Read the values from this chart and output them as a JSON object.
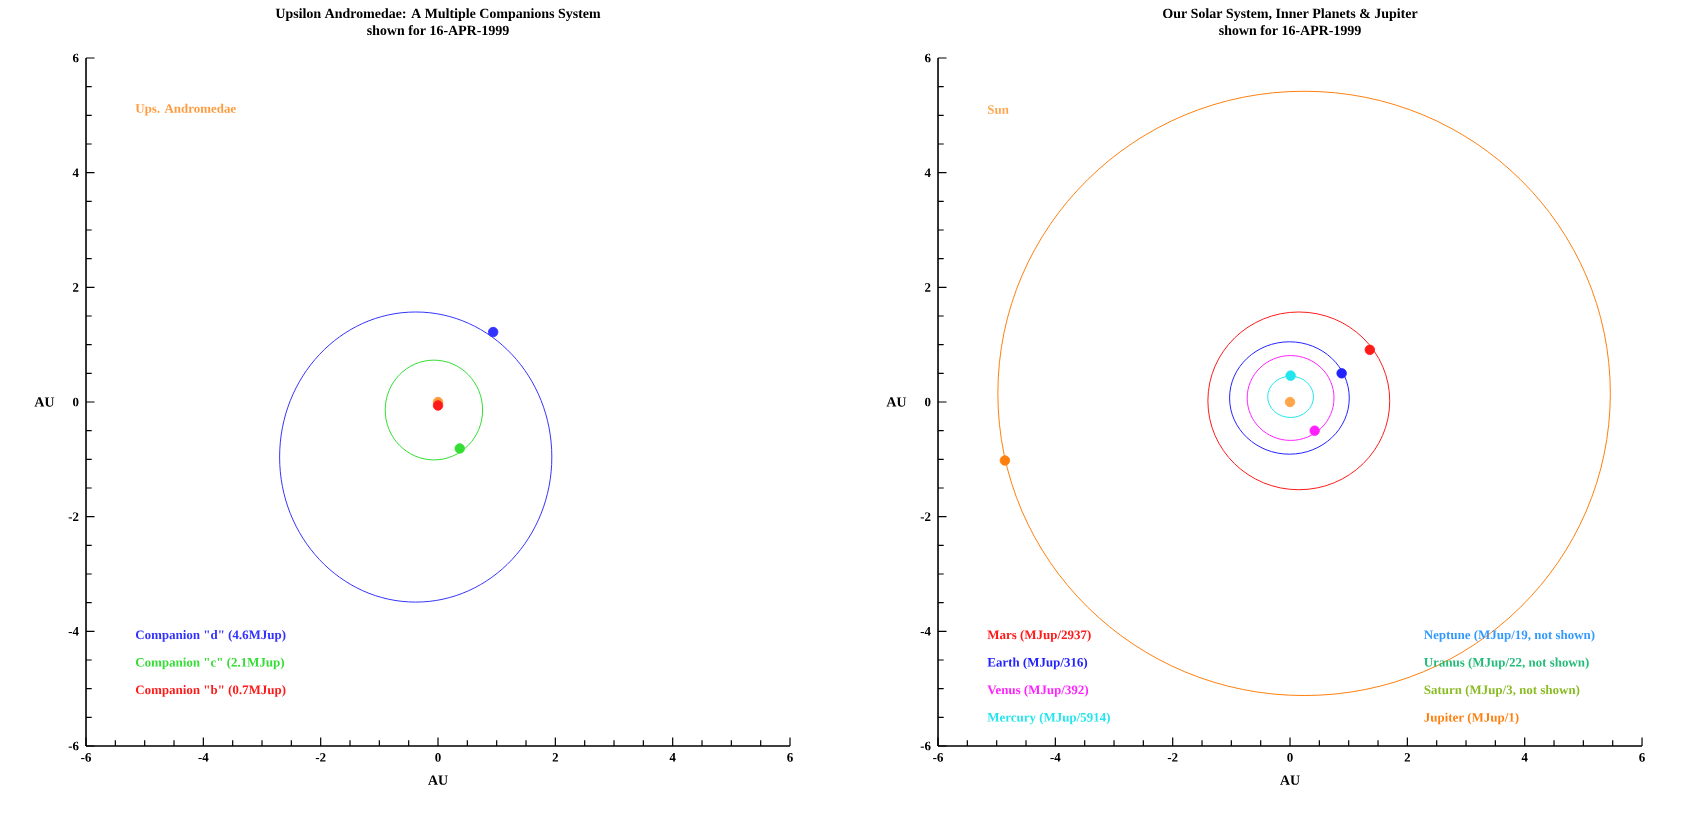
{
  "chart_data": [
    {
      "type": "scatter",
      "title": "Upsilon Andromedae: A Multiple Companions System",
      "subtitle": "shown for 16-APR-1999",
      "xlabel": "AU",
      "ylabel": "AU",
      "xlim": [
        -6,
        6
      ],
      "ylim": [
        -6,
        6
      ],
      "xticks": [
        -6,
        -4,
        -2,
        0,
        2,
        4,
        6
      ],
      "yticks": [
        -6,
        -4,
        -2,
        0,
        2,
        4,
        6
      ],
      "series": [
        {
          "name": "Ups. Andromedae",
          "color": "#ff9a3c",
          "x": [
            0
          ],
          "values": [
            0
          ]
        },
        {
          "name": "Companion \"d\" (4.6MJup)",
          "color": "#3333ff",
          "x": [
            0.94
          ],
          "values": [
            1.22
          ]
        },
        {
          "name": "Companion \"c\" (2.1MJup)",
          "color": "#33dd33",
          "x": [
            0.37
          ],
          "values": [
            -0.81
          ]
        },
        {
          "name": "Companion \"b\" (0.7MJup)",
          "color": "#ff1a1a",
          "x": [
            0
          ],
          "values": [
            -0.06
          ]
        }
      ]
    },
    {
      "type": "scatter",
      "title": "Our Solar System, Inner Planets & Jupiter",
      "subtitle": "shown for 16-APR-1999",
      "xlabel": "AU",
      "ylabel": "AU",
      "xlim": [
        -6,
        6
      ],
      "ylim": [
        -6,
        6
      ],
      "xticks": [
        -6,
        -4,
        -2,
        0,
        2,
        4,
        6
      ],
      "yticks": [
        -6,
        -4,
        -2,
        0,
        2,
        4,
        6
      ],
      "series": [
        {
          "name": "Sun",
          "color": "#ffa64d",
          "x": [
            0
          ],
          "values": [
            0
          ]
        },
        {
          "name": "Mars (MJup/2937)",
          "color": "#ff1a1a",
          "x": [
            1.36
          ],
          "values": [
            0.91
          ]
        },
        {
          "name": "Earth (MJup/316)",
          "color": "#2222ff",
          "x": [
            0.88
          ],
          "values": [
            0.5
          ]
        },
        {
          "name": "Venus (MJup/392)",
          "color": "#ff22ff",
          "x": [
            0.42
          ],
          "values": [
            -0.5
          ]
        },
        {
          "name": "Mercury (MJup/5914)",
          "color": "#22e5ee",
          "x": [
            0.01
          ],
          "values": [
            0.46
          ]
        },
        {
          "name": "Neptune (MJup/19, not shown)",
          "color": "#3399ff"
        },
        {
          "name": "Uranus (MJup/22, not shown)",
          "color": "#22bb77"
        },
        {
          "name": "Saturn (MJup/3, not shown)",
          "color": "#88bb22"
        },
        {
          "name": "Jupiter (MJup/1)",
          "color": "#ff7f0e",
          "x": [
            -4.86
          ],
          "values": [
            -1.02
          ]
        }
      ]
    }
  ]
}
